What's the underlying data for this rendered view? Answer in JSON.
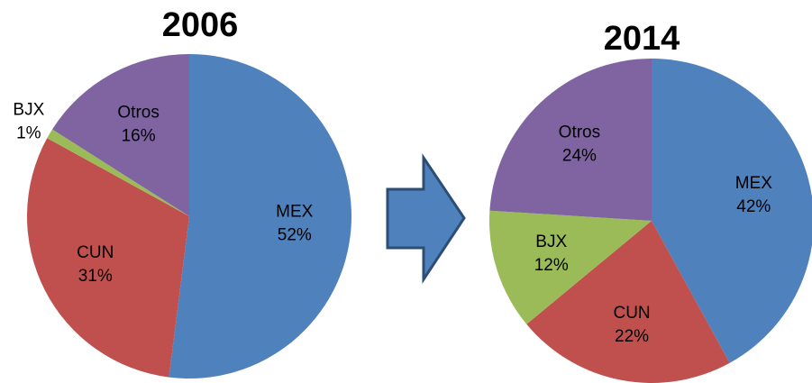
{
  "chart_data": [
    {
      "type": "pie",
      "title": "2006",
      "categories": [
        "MEX",
        "CUN",
        "BJX",
        "Otros"
      ],
      "values": [
        52,
        31,
        1,
        16
      ],
      "value_labels": [
        "52%",
        "31%",
        "1%",
        "16%"
      ],
      "colors": [
        "#4f81bd",
        "#c0504d",
        "#9bbb59",
        "#8064a2"
      ]
    },
    {
      "type": "pie",
      "title": "2014",
      "categories": [
        "MEX",
        "CUN",
        "BJX",
        "Otros"
      ],
      "values": [
        42,
        22,
        12,
        24
      ],
      "value_labels": [
        "42%",
        "22%",
        "12%",
        "24%"
      ],
      "colors": [
        "#4f81bd",
        "#c0504d",
        "#9bbb59",
        "#8064a2"
      ]
    }
  ]
}
